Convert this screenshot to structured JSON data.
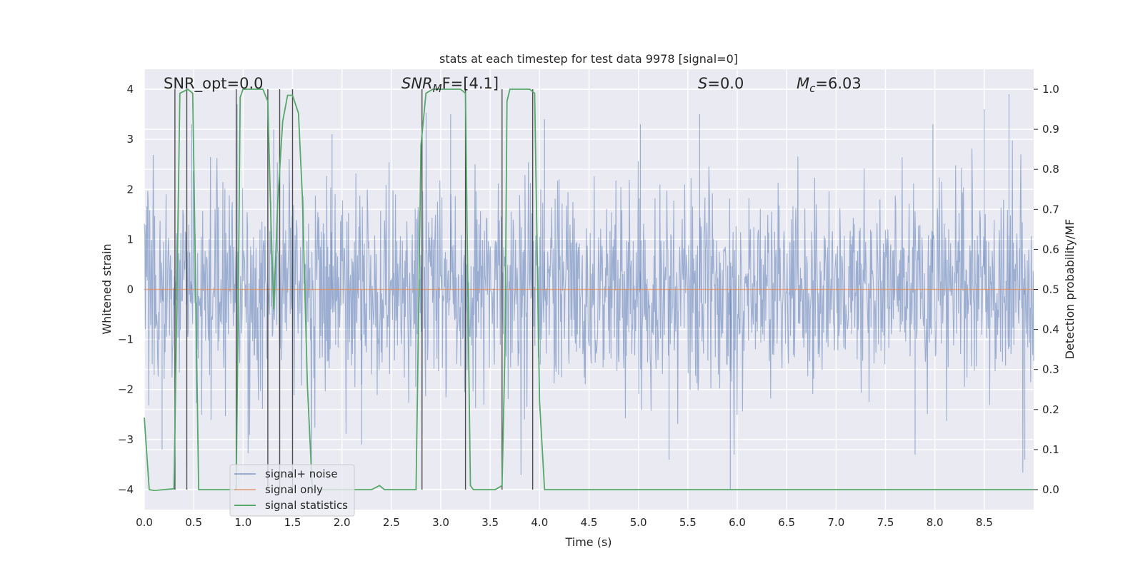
{
  "chart_data": {
    "type": "line",
    "title": "stats at each timestep for test data 9978 [signal=0]",
    "xlabel": "Time (s)",
    "ylabel_left": "Whitened strain",
    "ylabel_right": "Detection probability/MF",
    "xlim": [
      0.0,
      9.0
    ],
    "ylim_left": [
      -4.4,
      4.4
    ],
    "ylim_right": [
      -0.05,
      1.05
    ],
    "xticks": [
      "0.0",
      "0.5",
      "1.0",
      "1.5",
      "2.0",
      "2.5",
      "3.0",
      "3.5",
      "4.0",
      "4.5",
      "5.0",
      "5.5",
      "6.0",
      "6.5",
      "7.0",
      "7.5",
      "8.0",
      "8.5"
    ],
    "yticks_left": [
      "−4",
      "−3",
      "−2",
      "−1",
      "0",
      "1",
      "2",
      "3",
      "4"
    ],
    "yticks_right": [
      "0.0",
      "0.1",
      "0.2",
      "0.3",
      "0.4",
      "0.5",
      "0.6",
      "0.7",
      "0.8",
      "0.9",
      "1.0"
    ],
    "grid": true,
    "annotations": {
      "snr_opt": "SNR_opt=0.0",
      "snr_mf_base": "SNR",
      "snr_mf_sub": "M",
      "snr_mf_rest": "F=[4.1]",
      "s_italic": "S",
      "s_rest": "=0.0",
      "mc_base": "M",
      "mc_sub": "c",
      "mc_rest": "=6.03"
    },
    "legend": {
      "placement": "lower-left",
      "entries": [
        "signal+ noise",
        "signal only",
        "signal statistics"
      ]
    },
    "series": [
      {
        "name": "signal+ noise",
        "color": "#4c72b0",
        "axis": "left",
        "kind": "noise",
        "envelope_sigma": 1.0,
        "peaks": [
          {
            "x": 0.43,
            "y": 4.0
          },
          {
            "x": 0.48,
            "y": 3.3
          },
          {
            "x": 0.94,
            "y": 3.7
          },
          {
            "x": 1.31,
            "y": 3.2
          },
          {
            "x": 1.9,
            "y": 3.1
          },
          {
            "x": 3.1,
            "y": 3.5
          },
          {
            "x": 4.05,
            "y": 3.4
          },
          {
            "x": 5.02,
            "y": 3.3
          },
          {
            "x": 5.62,
            "y": 3.5
          },
          {
            "x": 7.98,
            "y": 3.3
          },
          {
            "x": 8.5,
            "y": 3.6
          },
          {
            "x": 8.75,
            "y": 3.9
          }
        ],
        "troughs": [
          {
            "x": 0.43,
            "y": -3.5
          },
          {
            "x": 5.31,
            "y": -3.4
          },
          {
            "x": 5.93,
            "y": -4.0
          },
          {
            "x": 8.91,
            "y": -3.4
          },
          {
            "x": 0.18,
            "y": -3.2
          },
          {
            "x": 2.2,
            "y": -3.1
          },
          {
            "x": 7.8,
            "y": -3.3
          }
        ]
      },
      {
        "name": "signal only",
        "color": "#dd8452",
        "axis": "left",
        "x": [
          0.0,
          9.0
        ],
        "y": [
          0.0,
          0.0
        ]
      },
      {
        "name": "signal statistics",
        "color": "#55a868",
        "axis": "right",
        "x": [
          0.0,
          0.05,
          0.1,
          0.2,
          0.3,
          0.31,
          0.36,
          0.4,
          0.44,
          0.49,
          0.55,
          0.6,
          0.9,
          0.93,
          0.95,
          0.97,
          1.0,
          1.1,
          1.2,
          1.25,
          1.28,
          1.31,
          1.35,
          1.4,
          1.45,
          1.5,
          1.56,
          1.6,
          1.65,
          1.7,
          2.0,
          2.3,
          2.38,
          2.43,
          2.6,
          2.75,
          2.8,
          2.85,
          2.92,
          3.0,
          3.1,
          3.2,
          3.25,
          3.28,
          3.3,
          3.33,
          3.4,
          3.55,
          3.62,
          3.65,
          3.67,
          3.7,
          3.8,
          3.9,
          3.95,
          4.0,
          4.05,
          4.1,
          4.5,
          5.0,
          6.0,
          7.0,
          8.0,
          9.0
        ],
        "y": [
          0.18,
          0.0,
          -0.002,
          0.0,
          0.002,
          0.15,
          0.99,
          0.995,
          1.0,
          0.99,
          0.0,
          0.0,
          0.0,
          0.0,
          0.45,
          0.98,
          1.0,
          1.0,
          1.0,
          0.97,
          0.68,
          0.45,
          0.72,
          0.92,
          0.985,
          0.985,
          0.94,
          0.73,
          0.26,
          0.0,
          0.0,
          0.0,
          0.01,
          0.0,
          0.0,
          0.0,
          0.86,
          0.99,
          1.0,
          1.0,
          1.0,
          1.0,
          0.99,
          0.38,
          0.01,
          0.0,
          0.0,
          0.0,
          0.01,
          0.35,
          0.97,
          1.0,
          1.0,
          1.0,
          0.99,
          0.22,
          0.0,
          0.0,
          0.0,
          0.0,
          0.0,
          0.0,
          0.0,
          0.0
        ]
      }
    ],
    "vertical_markers": [
      {
        "x": 0.31,
        "y_top": 1.0,
        "y_bottom": 0.0
      },
      {
        "x": 0.43,
        "y_top": 1.0,
        "y_bottom": 0.0
      },
      {
        "x": 0.93,
        "y_top": 1.0,
        "y_bottom": 0.0
      },
      {
        "x": 1.25,
        "y_top": 1.0,
        "y_bottom": 0.0
      },
      {
        "x": 1.37,
        "y_top": 1.0,
        "y_bottom": 0.0
      },
      {
        "x": 1.5,
        "y_top": 1.0,
        "y_bottom": 0.0
      },
      {
        "x": 2.81,
        "y_top": 1.0,
        "y_bottom": 0.0
      },
      {
        "x": 3.25,
        "y_top": 1.0,
        "y_bottom": 0.0
      },
      {
        "x": 3.62,
        "y_top": 1.0,
        "y_bottom": 0.0
      },
      {
        "x": 3.93,
        "y_top": 1.0,
        "y_bottom": 0.0
      }
    ],
    "marker_color": "#4d4d4d"
  }
}
